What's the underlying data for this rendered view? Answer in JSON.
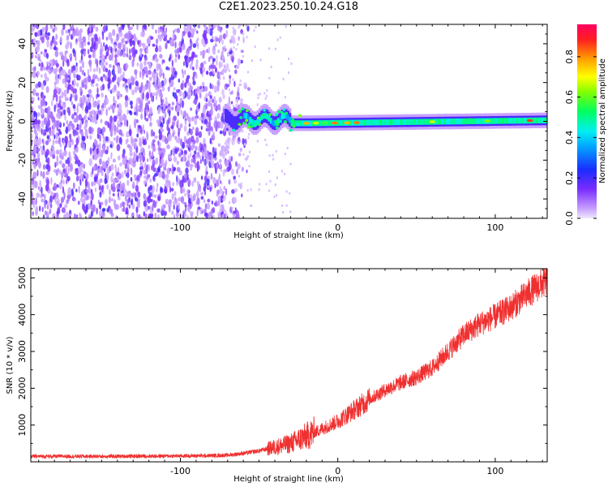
{
  "title": "C2E1.2023.250.10.24.G18",
  "chart_data": [
    {
      "type": "heatmap",
      "xlabel": "Height of straight line (km)",
      "ylabel": "Frequency (Hz)",
      "xlim": [
        -195,
        133
      ],
      "ylim": [
        -50,
        50
      ],
      "xticks": [
        -100,
        0,
        100
      ],
      "yticks": [
        -40,
        -20,
        0,
        20,
        40
      ],
      "colorbar": {
        "label": "Normalized spectral amplitude",
        "range": [
          0,
          0.96
        ],
        "ticks": [
          0.0,
          0.2,
          0.4,
          0.6,
          0.8
        ]
      },
      "description_points": {
        "noise_region_x": [
          -195,
          -60
        ],
        "signal_band_center_hz": 0,
        "signal_onset_x": -70,
        "strong_signal_x": [
          -40,
          133
        ]
      }
    },
    {
      "type": "line",
      "xlabel": "Height of straight line (km)",
      "ylabel": "SNR (10 * v/v)",
      "xlim": [
        -195,
        133
      ],
      "ylim": [
        0,
        5250
      ],
      "xticks": [
        -100,
        0,
        100
      ],
      "yticks": [
        1000,
        2000,
        3000,
        4000,
        5000
      ],
      "color": "#f03030",
      "series": [
        {
          "x": [
            -195,
            -150,
            -100,
            -80,
            -70,
            -60,
            -50,
            -40,
            -30,
            -25,
            -20,
            -10,
            0,
            10,
            20,
            30,
            40,
            50,
            60,
            70,
            80,
            90,
            100,
            110,
            120,
            133
          ],
          "values": [
            150,
            150,
            160,
            170,
            180,
            230,
            300,
            400,
            500,
            600,
            700,
            900,
            1100,
            1400,
            1700,
            1950,
            2150,
            2300,
            2550,
            3000,
            3450,
            3750,
            3950,
            4200,
            4550,
            4950
          ]
        }
      ]
    }
  ]
}
